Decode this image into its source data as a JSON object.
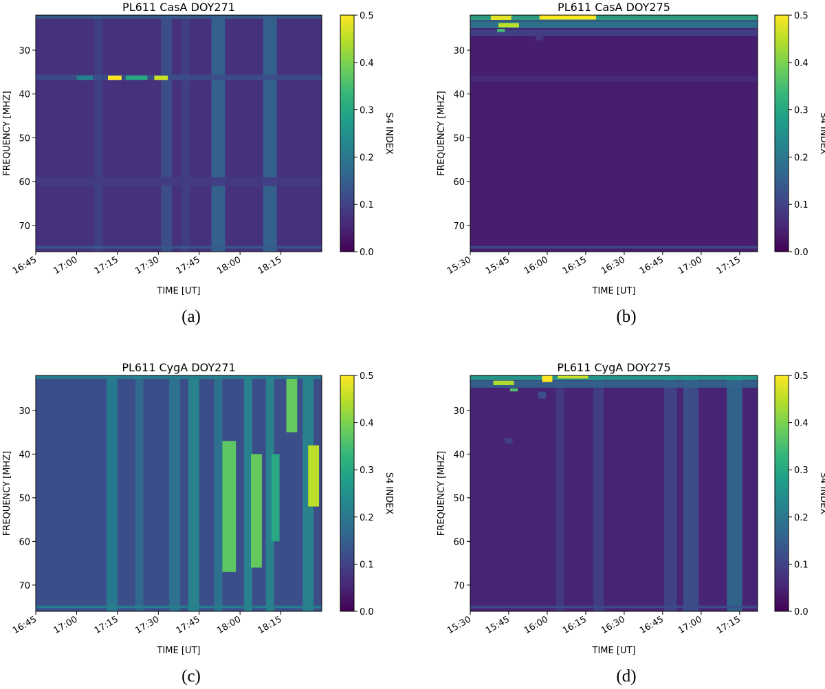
{
  "figure": {
    "colormap_stops": [
      "#440154",
      "#482878",
      "#3e4989",
      "#31688e",
      "#26828e",
      "#1f9e89",
      "#35b779",
      "#6ece58",
      "#b5de2b",
      "#fde725"
    ]
  },
  "chart_data": [
    {
      "type": "heatmap",
      "caption": "(a)",
      "title": "PL611 CasA DOY271",
      "xlabel": "TIME [UT]",
      "ylabel": "FREQUENCY [MHZ]",
      "colorbar_label": "S4 INDEX",
      "x_tick_labels": [
        "16:45",
        "17:00",
        "17:15",
        "17:30",
        "17:45",
        "18:00",
        "18:15"
      ],
      "y_tick_labels": [
        "30",
        "40",
        "50",
        "60",
        "70"
      ],
      "colorbar_ticks": [
        "0.0",
        "0.1",
        "0.2",
        "0.3",
        "0.4",
        "0.5"
      ],
      "xlim": [
        "16:45",
        "18:30"
      ],
      "ylim": [
        76,
        22
      ],
      "clim": [
        0.0,
        0.5
      ],
      "background_s4": 0.07,
      "features": [
        {
          "kind": "vband",
          "x": "17:08",
          "width_min": 3,
          "s4": 0.1
        },
        {
          "kind": "vband",
          "x": "17:33",
          "width_min": 4,
          "s4": 0.13
        },
        {
          "kind": "vband",
          "x": "17:40",
          "width_min": 3,
          "s4": 0.1
        },
        {
          "kind": "vband",
          "x": "17:52",
          "width_min": 5,
          "s4": 0.17
        },
        {
          "kind": "vband",
          "x": "18:11",
          "width_min": 5,
          "s4": 0.17
        },
        {
          "kind": "hband",
          "y": 36.2,
          "height": 1.2,
          "s4": 0.12
        },
        {
          "kind": "hband",
          "y": 22.4,
          "height": 0.8,
          "s4": 0.15
        },
        {
          "kind": "hband",
          "y": 60,
          "height": 2,
          "s4": 0.09
        },
        {
          "kind": "hband",
          "y": 75,
          "height": 0.6,
          "s4": 0.14
        },
        {
          "kind": "blob",
          "x": "17:14",
          "y": 36.3,
          "w_min": 5,
          "h": 1.0,
          "s4": 0.5
        },
        {
          "kind": "blob",
          "x": "17:31",
          "y": 36.3,
          "w_min": 5,
          "h": 1.0,
          "s4": 0.46
        },
        {
          "kind": "blob",
          "x": "17:22",
          "y": 36.3,
          "w_min": 8,
          "h": 1.0,
          "s4": 0.3
        },
        {
          "kind": "blob",
          "x": "17:03",
          "y": 36.3,
          "w_min": 6,
          "h": 1.0,
          "s4": 0.22
        }
      ]
    },
    {
      "type": "heatmap",
      "caption": "(b)",
      "title": "PL611 CasA DOY275",
      "xlabel": "TIME [UT]",
      "ylabel": "FREQUENCY [MHZ]",
      "colorbar_label": "S4 INDEX",
      "x_tick_labels": [
        "15:30",
        "15:45",
        "16:00",
        "16:15",
        "16:30",
        "16:45",
        "17:00",
        "17:15"
      ],
      "y_tick_labels": [
        "30",
        "40",
        "50",
        "60",
        "70"
      ],
      "colorbar_ticks": [
        "0.0",
        "0.1",
        "0.2",
        "0.3",
        "0.4",
        "0.5"
      ],
      "xlim": [
        "15:30",
        "17:22"
      ],
      "ylim": [
        76,
        22
      ],
      "clim": [
        0.0,
        0.5
      ],
      "background_s4": 0.04,
      "features": [
        {
          "kind": "hband",
          "y": 22.6,
          "height": 1.2,
          "s4": 0.3
        },
        {
          "kind": "hband",
          "y": 24.2,
          "height": 1.6,
          "s4": 0.2
        },
        {
          "kind": "hband",
          "y": 26,
          "height": 1.5,
          "s4": 0.1
        },
        {
          "kind": "hband",
          "y": 36.5,
          "height": 1.5,
          "s4": 0.06
        },
        {
          "kind": "hband",
          "y": 75,
          "height": 0.6,
          "s4": 0.12
        },
        {
          "kind": "blob",
          "x": "16:08",
          "y": 22.4,
          "w_min": 22,
          "h": 1.2,
          "s4": 0.5
        },
        {
          "kind": "blob",
          "x": "15:42",
          "y": 22.6,
          "w_min": 8,
          "h": 1.0,
          "s4": 0.48
        },
        {
          "kind": "blob",
          "x": "15:45",
          "y": 24.3,
          "w_min": 8,
          "h": 1.0,
          "s4": 0.45
        },
        {
          "kind": "blob",
          "x": "15:42",
          "y": 25.5,
          "w_min": 3,
          "h": 0.7,
          "s4": 0.35
        },
        {
          "kind": "blob",
          "x": "15:57",
          "y": 27,
          "w_min": 3,
          "h": 1.5,
          "s4": 0.08
        }
      ]
    },
    {
      "type": "heatmap",
      "caption": "(c)",
      "title": "PL611 CygA DOY271",
      "xlabel": "TIME [UT]",
      "ylabel": "FREQUENCY [MHZ]",
      "colorbar_label": "S4 INDEX",
      "x_tick_labels": [
        "16:45",
        "17:00",
        "17:15",
        "17:30",
        "17:45",
        "18:00",
        "18:15"
      ],
      "y_tick_labels": [
        "30",
        "40",
        "50",
        "60",
        "70"
      ],
      "colorbar_ticks": [
        "0.0",
        "0.1",
        "0.2",
        "0.3",
        "0.4",
        "0.5"
      ],
      "xlim": [
        "16:45",
        "18:30"
      ],
      "ylim": [
        76,
        22
      ],
      "clim": [
        0.0,
        0.5
      ],
      "background_s4": 0.12,
      "features": [
        {
          "kind": "vband",
          "x": "17:13",
          "width_min": 4,
          "s4": 0.22
        },
        {
          "kind": "vband",
          "x": "17:23",
          "width_min": 3,
          "s4": 0.18
        },
        {
          "kind": "vband",
          "x": "17:36",
          "width_min": 4,
          "s4": 0.2
        },
        {
          "kind": "vband",
          "x": "17:43",
          "width_min": 4,
          "s4": 0.24
        },
        {
          "kind": "vband",
          "x": "17:52",
          "width_min": 3,
          "s4": 0.2
        },
        {
          "kind": "vband",
          "x": "18:03",
          "width_min": 3,
          "s4": 0.24
        },
        {
          "kind": "vband",
          "x": "18:11",
          "width_min": 3,
          "s4": 0.24
        },
        {
          "kind": "vband",
          "x": "18:25",
          "width_min": 4,
          "s4": 0.24
        },
        {
          "kind": "blob",
          "x": "17:56",
          "y": 52,
          "w_min": 5,
          "h": 30,
          "s4": 0.37
        },
        {
          "kind": "blob",
          "x": "18:06",
          "y": 53,
          "w_min": 4,
          "h": 26,
          "s4": 0.38
        },
        {
          "kind": "blob",
          "x": "18:19",
          "y": 28,
          "w_min": 4,
          "h": 14,
          "s4": 0.38
        },
        {
          "kind": "blob",
          "x": "18:27",
          "y": 45,
          "w_min": 4,
          "h": 14,
          "s4": 0.45
        },
        {
          "kind": "blob",
          "x": "18:13",
          "y": 50,
          "w_min": 3,
          "h": 20,
          "s4": 0.3
        },
        {
          "kind": "hband",
          "y": 22.4,
          "height": 0.8,
          "s4": 0.22
        },
        {
          "kind": "hband",
          "y": 75,
          "height": 0.6,
          "s4": 0.22
        }
      ]
    },
    {
      "type": "heatmap",
      "caption": "(d)",
      "title": "PL611 CygA DOY275",
      "xlabel": "TIME [UT]",
      "ylabel": "FREQUENCY [MHZ]",
      "colorbar_label": "S4 INDEX",
      "x_tick_labels": [
        "15:30",
        "15:45",
        "16:00",
        "16:15",
        "16:30",
        "16:45",
        "17:00",
        "17:15"
      ],
      "y_tick_labels": [
        "30",
        "40",
        "50",
        "60",
        "70"
      ],
      "colorbar_ticks": [
        "0.0",
        "0.1",
        "0.2",
        "0.3",
        "0.4",
        "0.5"
      ],
      "xlim": [
        "15:30",
        "17:22"
      ],
      "ylim": [
        76,
        22
      ],
      "clim": [
        0.0,
        0.5
      ],
      "background_s4": 0.05,
      "features": [
        {
          "kind": "vband",
          "x": "16:05",
          "width_min": 3,
          "s4": 0.09
        },
        {
          "kind": "vband",
          "x": "16:20",
          "width_min": 4,
          "s4": 0.1
        },
        {
          "kind": "vband",
          "x": "16:48",
          "width_min": 5,
          "s4": 0.11
        },
        {
          "kind": "vband",
          "x": "16:56",
          "width_min": 6,
          "s4": 0.13
        },
        {
          "kind": "vband",
          "x": "17:13",
          "width_min": 6,
          "s4": 0.18
        },
        {
          "kind": "hband",
          "y": 22.6,
          "height": 1.0,
          "s4": 0.28
        },
        {
          "kind": "hband",
          "y": 24,
          "height": 1.6,
          "s4": 0.16
        },
        {
          "kind": "hband",
          "y": 75,
          "height": 0.6,
          "s4": 0.12
        },
        {
          "kind": "blob",
          "x": "16:00",
          "y": 22.6,
          "w_min": 4,
          "h": 1.8,
          "s4": 0.5
        },
        {
          "kind": "blob",
          "x": "16:10",
          "y": 22.3,
          "w_min": 12,
          "h": 0.8,
          "s4": 0.46
        },
        {
          "kind": "blob",
          "x": "15:43",
          "y": 23.7,
          "w_min": 8,
          "h": 1.0,
          "s4": 0.44
        },
        {
          "kind": "blob",
          "x": "15:47",
          "y": 25.3,
          "w_min": 3,
          "h": 0.7,
          "s4": 0.36
        },
        {
          "kind": "blob",
          "x": "15:58",
          "y": 26.5,
          "w_min": 3,
          "h": 1.6,
          "s4": 0.12
        },
        {
          "kind": "blob",
          "x": "15:45",
          "y": 37,
          "w_min": 3,
          "h": 1.2,
          "s4": 0.1
        }
      ]
    }
  ]
}
